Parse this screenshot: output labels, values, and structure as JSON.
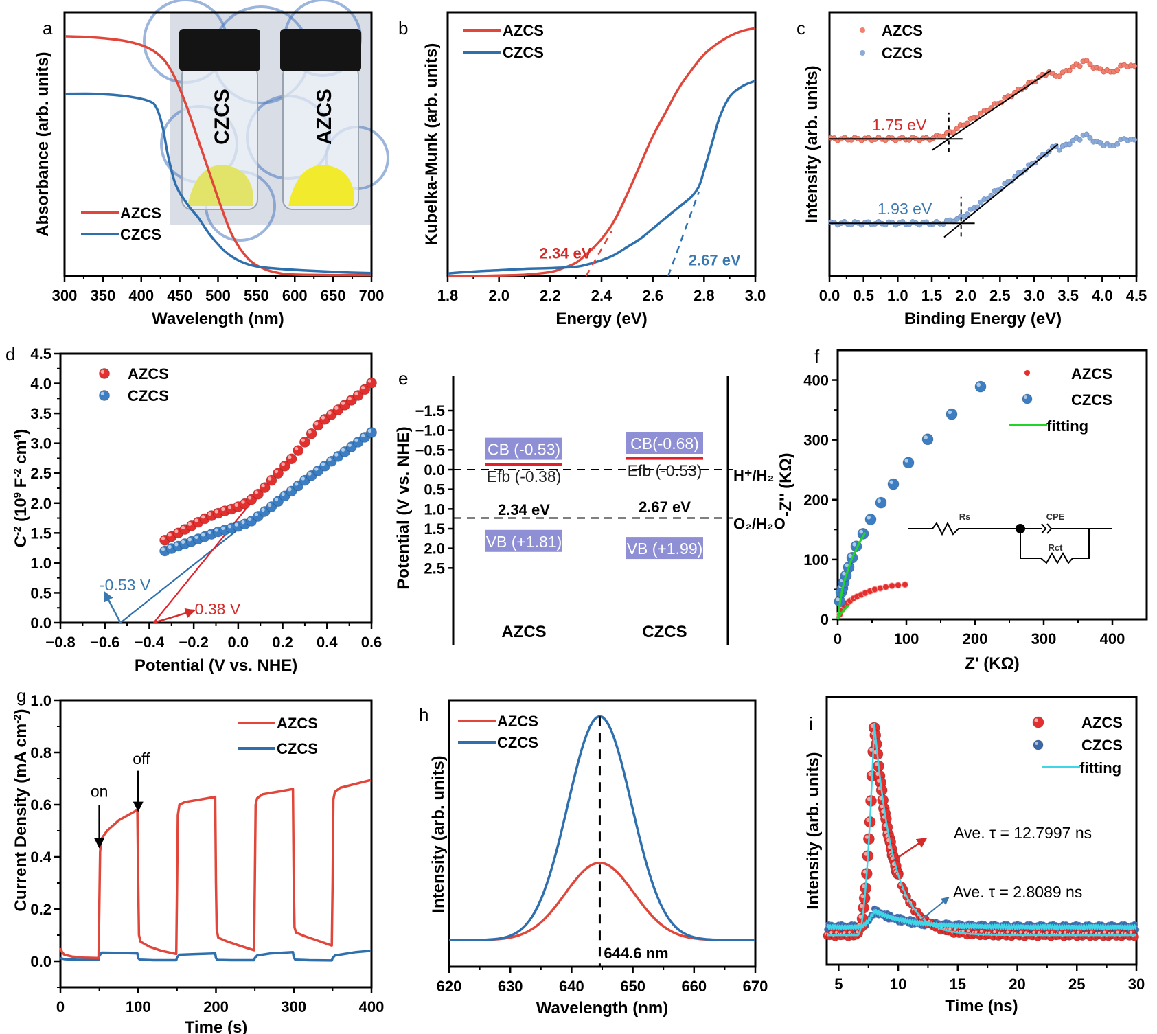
{
  "colors": {
    "azcs": "#e0473a",
    "czcs": "#2e6fad",
    "azcs_marker": "#e3302f",
    "czcs_marker": "#3b7ec4",
    "azcs_light": "#f08070",
    "czcs_light": "#8aaad8",
    "fit_green": "#22d42a",
    "fit_cyan": "#3fd7e8",
    "band_box": "#8f8fd6",
    "efb_line": "#e3202a",
    "annot_red": "#d42a2a",
    "annot_blue": "#3a78b0"
  },
  "chart_data": [
    {
      "panel": "a",
      "type": "line",
      "xlabel": "Wavelength (nm)",
      "ylabel": "Absorbance (arb. units)",
      "xlim": [
        300,
        700
      ],
      "xticks": [
        "300",
        "350",
        "400",
        "450",
        "500",
        "550",
        "600",
        "650",
        "700"
      ],
      "ylim": [
        0,
        1.1
      ],
      "legend": [
        "AZCS",
        "CZCS"
      ],
      "legend_position": "lower-left",
      "inset": {
        "description": "photo of two vials",
        "labels": [
          "CZCS",
          "AZCS"
        ]
      },
      "series": [
        {
          "name": "AZCS",
          "x": [
            300,
            340,
            380,
            410,
            430,
            445,
            460,
            475,
            490,
            505,
            520,
            540,
            560,
            580,
            600,
            650,
            700
          ],
          "y": [
            1.0,
            0.995,
            0.98,
            0.95,
            0.9,
            0.82,
            0.7,
            0.56,
            0.42,
            0.28,
            0.16,
            0.07,
            0.03,
            0.012,
            0.006,
            0.004,
            0.004
          ]
        },
        {
          "name": "CZCS",
          "x": [
            300,
            340,
            380,
            410,
            420,
            428,
            435,
            445,
            460,
            475,
            490,
            510,
            530,
            550,
            580,
            620,
            660,
            700
          ],
          "y": [
            0.76,
            0.76,
            0.75,
            0.73,
            0.7,
            0.62,
            0.5,
            0.38,
            0.3,
            0.24,
            0.17,
            0.1,
            0.06,
            0.04,
            0.03,
            0.022,
            0.016,
            0.012
          ]
        }
      ]
    },
    {
      "panel": "b",
      "type": "line",
      "xlabel": "Energy (eV)",
      "ylabel": "Kubelka-Munk (arb. units)",
      "xlim": [
        1.8,
        3.0
      ],
      "xticks": [
        "1.8",
        "2.0",
        "2.2",
        "2.4",
        "2.6",
        "2.8",
        "3.0"
      ],
      "ylim": [
        0,
        1.0
      ],
      "legend": [
        "AZCS",
        "CZCS"
      ],
      "legend_position": "top-left",
      "annotations": [
        {
          "text": "2.34 eV",
          "series": "AZCS",
          "x": 2.34
        },
        {
          "text": "2.67 eV",
          "series": "CZCS",
          "x": 2.67
        }
      ],
      "series": [
        {
          "name": "AZCS",
          "x": [
            1.8,
            1.9,
            2.0,
            2.1,
            2.2,
            2.25,
            2.3,
            2.35,
            2.4,
            2.45,
            2.5,
            2.55,
            2.6,
            2.65,
            2.7,
            2.75,
            2.8,
            2.85,
            2.9,
            2.95,
            3.0
          ],
          "y": [
            0.0,
            0.0,
            0.002,
            0.005,
            0.015,
            0.03,
            0.05,
            0.09,
            0.14,
            0.21,
            0.31,
            0.42,
            0.53,
            0.62,
            0.71,
            0.78,
            0.84,
            0.88,
            0.91,
            0.93,
            0.94
          ]
        },
        {
          "name": "CZCS",
          "x": [
            1.8,
            1.9,
            2.0,
            2.1,
            2.2,
            2.3,
            2.35,
            2.4,
            2.45,
            2.5,
            2.55,
            2.6,
            2.65,
            2.7,
            2.75,
            2.78,
            2.8,
            2.83,
            2.86,
            2.9,
            2.95,
            3.0
          ],
          "y": [
            0.01,
            0.017,
            0.022,
            0.027,
            0.03,
            0.035,
            0.045,
            0.06,
            0.08,
            0.11,
            0.14,
            0.18,
            0.22,
            0.26,
            0.3,
            0.34,
            0.4,
            0.5,
            0.6,
            0.68,
            0.72,
            0.74
          ]
        }
      ],
      "tangents": [
        {
          "series": "AZCS",
          "x": [
            2.34,
            2.44
          ],
          "y": [
            0.0,
            0.17
          ]
        },
        {
          "series": "CZCS",
          "x": [
            2.66,
            2.78
          ],
          "y": [
            0.0,
            0.32
          ]
        }
      ]
    },
    {
      "panel": "c",
      "type": "scatter",
      "xlabel": "Binding Energy (eV)",
      "ylabel": "Intensity (arb. units)",
      "xlim": [
        0.0,
        4.5
      ],
      "xticks": [
        "0.0",
        "0.5",
        "1.0",
        "1.5",
        "2.0",
        "2.5",
        "3.0",
        "3.5",
        "4.0",
        "4.5"
      ],
      "ylim": [
        0,
        1.0
      ],
      "legend": [
        "AZCS",
        "CZCS"
      ],
      "legend_position": "top-left",
      "annotations": [
        {
          "text": "1.75 eV",
          "series": "AZCS",
          "x": 1.75
        },
        {
          "text": "1.93 eV",
          "series": "CZCS",
          "x": 1.93
        }
      ],
      "series": [
        {
          "name": "AZCS",
          "baseline": 0.52,
          "edge": 1.75,
          "slope_end": 3.25,
          "plateau": 0.78
        },
        {
          "name": "CZCS",
          "baseline": 0.2,
          "edge": 1.93,
          "slope_end": 3.35,
          "plateau": 0.5
        }
      ]
    },
    {
      "panel": "d",
      "type": "scatter",
      "xlabel": "Potential (V vs. NHE)",
      "ylabel": "C⁻² (10⁹ F⁻² cm⁴)",
      "ylabel_parts": {
        "base": "C",
        "sup1": "-2",
        "mid": " (10",
        "sup2": "9",
        "mid2": " F",
        "sup3": "-2",
        "mid3": " cm",
        "sup4": "4",
        "end": ")"
      },
      "xlim": [
        -0.8,
        0.6
      ],
      "xticks": [
        "−0.8",
        "−0.6",
        "−0.4",
        "−0.2",
        "0.0",
        "0.2",
        "0.4",
        "0.6"
      ],
      "ylim": [
        0.0,
        4.5
      ],
      "yticks": [
        "0.0",
        "0.5",
        "1.0",
        "1.5",
        "2.0",
        "2.5",
        "3.0",
        "3.5",
        "4.0",
        "4.5"
      ],
      "legend": [
        "AZCS",
        "CZCS"
      ],
      "legend_position": "top-left",
      "annotations": [
        {
          "text": "-0.53 V",
          "series": "CZCS",
          "x": -0.53
        },
        {
          "text": "-0.38 V",
          "series": "AZCS",
          "x": -0.38
        }
      ],
      "series": [
        {
          "name": "AZCS",
          "x": [
            -0.33,
            -0.3,
            -0.27,
            -0.24,
            -0.21,
            -0.18,
            -0.15,
            -0.12,
            -0.09,
            -0.06,
            -0.03,
            0.0,
            0.03,
            0.06,
            0.09,
            0.12,
            0.15,
            0.18,
            0.21,
            0.24,
            0.27,
            0.3,
            0.33,
            0.36,
            0.39,
            0.42,
            0.45,
            0.48,
            0.51,
            0.54,
            0.57,
            0.6
          ],
          "y": [
            1.38,
            1.44,
            1.5,
            1.56,
            1.62,
            1.68,
            1.74,
            1.79,
            1.83,
            1.87,
            1.9,
            1.94,
            1.99,
            2.06,
            2.15,
            2.26,
            2.38,
            2.5,
            2.62,
            2.74,
            2.88,
            3.02,
            3.16,
            3.3,
            3.4,
            3.48,
            3.56,
            3.64,
            3.72,
            3.8,
            3.9,
            4.01
          ]
        },
        {
          "name": "CZCS",
          "x": [
            -0.33,
            -0.3,
            -0.27,
            -0.24,
            -0.21,
            -0.18,
            -0.15,
            -0.12,
            -0.09,
            -0.06,
            -0.03,
            0.0,
            0.03,
            0.06,
            0.09,
            0.12,
            0.15,
            0.18,
            0.21,
            0.24,
            0.27,
            0.3,
            0.33,
            0.36,
            0.39,
            0.42,
            0.45,
            0.48,
            0.51,
            0.54,
            0.57,
            0.6
          ],
          "y": [
            1.2,
            1.24,
            1.28,
            1.32,
            1.36,
            1.4,
            1.44,
            1.48,
            1.52,
            1.55,
            1.58,
            1.61,
            1.65,
            1.7,
            1.78,
            1.86,
            1.94,
            2.03,
            2.12,
            2.2,
            2.29,
            2.38,
            2.46,
            2.54,
            2.62,
            2.7,
            2.78,
            2.86,
            2.94,
            3.02,
            3.1,
            3.18
          ]
        }
      ],
      "tangents": [
        {
          "series": "CZCS",
          "x": [
            -0.53,
            0.02
          ],
          "y": [
            0.0,
            1.62
          ]
        },
        {
          "series": "AZCS",
          "x": [
            -0.38,
            0.06
          ],
          "y": [
            0.0,
            2.02
          ]
        }
      ]
    },
    {
      "panel": "e",
      "type": "diagram",
      "ylabel": "Potential (V vs. NHE)",
      "ylim": [
        -1.5,
        3.0
      ],
      "yticks": [
        "−1.5",
        "−1.0",
        "−0.5",
        "0.0",
        "0.5",
        "1.0",
        "1.5",
        "2.0",
        "2.5"
      ],
      "ytick_values": [
        -1.5,
        -1.0,
        -0.5,
        0.0,
        0.5,
        1.0,
        1.5,
        2.0,
        2.5
      ],
      "reference_levels": [
        {
          "label": "H⁺/H₂",
          "value": 0.0
        },
        {
          "label": "O₂/H₂O",
          "value": 1.23
        }
      ],
      "materials": [
        {
          "name": "AZCS",
          "cb_label": "CB (-0.53)",
          "cb": -0.53,
          "efb_label": "Efb (-0.38)",
          "efb": -0.38,
          "vb_label": "VB (+1.81)",
          "vb": 1.81,
          "gap_label": "2.34 eV"
        },
        {
          "name": "CZCS",
          "cb_label": "CB(-0.68)",
          "cb": -0.68,
          "efb_label": "Efb (-0.53)",
          "efb": -0.53,
          "vb_label": "VB (+1.99)",
          "vb": 1.99,
          "gap_label": "2.67 eV"
        }
      ]
    },
    {
      "panel": "f",
      "type": "scatter",
      "xlabel": "Z' (KΩ)",
      "ylabel": "-Z'' (KΩ)",
      "xlim": [
        0,
        450
      ],
      "xticks": [
        "0",
        "100",
        "200",
        "300",
        "400"
      ],
      "ylim": [
        0,
        450
      ],
      "yticks": [
        "0",
        "100",
        "200",
        "300",
        "400"
      ],
      "legend": [
        "AZCS",
        "CZCS",
        "fitting"
      ],
      "legend_position": "top-right",
      "inset_circuit": {
        "labels": [
          "Rs",
          "CPE",
          "Rct"
        ]
      },
      "series": [
        {
          "name": "AZCS",
          "x": [
            3,
            6,
            10,
            14,
            18,
            23,
            28,
            34,
            40,
            47,
            54,
            62,
            70,
            79,
            88,
            98
          ],
          "y": [
            8,
            15,
            22,
            27,
            31,
            35,
            38,
            41,
            44,
            47,
            50,
            52,
            54,
            56,
            57,
            58
          ]
        },
        {
          "name": "CZCS",
          "x": [
            3,
            5,
            7,
            9,
            12,
            16,
            21,
            27,
            37,
            48,
            63,
            81,
            103,
            131,
            166,
            208
          ],
          "y": [
            30,
            45,
            52,
            62,
            73,
            87,
            103,
            122,
            143,
            167,
            195,
            226,
            262,
            301,
            343,
            389
          ]
        },
        {
          "name": "fitting",
          "x": [
            0,
            5,
            10,
            15,
            20,
            25,
            30,
            35,
            40
          ],
          "y": [
            0,
            40,
            65,
            83,
            100,
            112,
            124,
            135,
            145
          ]
        },
        {
          "name": "fitting",
          "x": [
            0,
            4,
            8,
            12,
            16
          ],
          "y": [
            0,
            8,
            14,
            19,
            23
          ]
        }
      ]
    },
    {
      "panel": "g",
      "type": "line",
      "xlabel": "Time (s)",
      "ylabel": "Current Density (mA cm⁻²)",
      "ylabel_parts": {
        "base": "Current Density (mA cm",
        "sup": "-2",
        "end": ")"
      },
      "xlim": [
        0,
        400
      ],
      "xticks": [
        "0",
        "100",
        "200",
        "300",
        "400"
      ],
      "ylim": [
        -0.1,
        1.0
      ],
      "yticks": [
        "0.0",
        "0.2",
        "0.4",
        "0.6",
        "0.8",
        "1.0"
      ],
      "legend": [
        "AZCS",
        "CZCS"
      ],
      "legend_position": "top-right",
      "annotations": [
        {
          "text": "on",
          "x": 50
        },
        {
          "text": "off",
          "x": 100
        }
      ],
      "series": [
        {
          "name": "AZCS",
          "x": [
            0,
            2,
            5,
            15,
            30,
            49,
            50,
            51,
            53,
            60,
            75,
            99,
            100,
            101,
            103,
            115,
            130,
            149,
            150,
            151,
            153,
            160,
            180,
            199,
            200,
            201,
            203,
            215,
            230,
            249,
            250,
            251,
            253,
            260,
            280,
            299,
            300,
            301,
            303,
            315,
            330,
            349,
            350,
            351,
            353,
            360,
            380,
            400
          ],
          "y": [
            0.05,
            0.035,
            0.025,
            0.018,
            0.014,
            0.012,
            0.2,
            0.42,
            0.47,
            0.5,
            0.54,
            0.58,
            0.3,
            0.1,
            0.075,
            0.055,
            0.04,
            0.028,
            0.3,
            0.56,
            0.6,
            0.61,
            0.62,
            0.63,
            0.3,
            0.12,
            0.09,
            0.075,
            0.06,
            0.042,
            0.3,
            0.6,
            0.625,
            0.64,
            0.65,
            0.66,
            0.3,
            0.13,
            0.11,
            0.095,
            0.08,
            0.06,
            0.3,
            0.62,
            0.65,
            0.665,
            0.68,
            0.695
          ]
        },
        {
          "name": "CZCS",
          "x": [
            0,
            5,
            20,
            49,
            50,
            53,
            70,
            99,
            100,
            102,
            120,
            149,
            150,
            153,
            170,
            199,
            200,
            202,
            220,
            249,
            250,
            253,
            270,
            299,
            300,
            302,
            320,
            349,
            350,
            353,
            380,
            400
          ],
          "y": [
            0.012,
            0.008,
            0.006,
            0.005,
            0.02,
            0.033,
            0.032,
            0.03,
            0.012,
            0.006,
            0.004,
            0.004,
            0.015,
            0.025,
            0.027,
            0.03,
            0.012,
            0.005,
            0.004,
            0.004,
            0.012,
            0.022,
            0.03,
            0.035,
            0.015,
            0.006,
            0.004,
            0.003,
            0.012,
            0.022,
            0.035,
            0.04
          ]
        }
      ]
    },
    {
      "panel": "h",
      "type": "line",
      "xlabel": "Wavelength (nm)",
      "ylabel": "Intensity (arb. units)",
      "xlim": [
        620,
        670
      ],
      "xticks": [
        "620",
        "630",
        "640",
        "650",
        "660",
        "670"
      ],
      "ylim": [
        0,
        1.0
      ],
      "legend": [
        "AZCS",
        "CZCS"
      ],
      "legend_position": "top-left",
      "annotations": [
        {
          "text": "644.6 nm",
          "x": 644.6
        }
      ],
      "series": [
        {
          "name": "AZCS",
          "peak": 644.6,
          "height": 0.29,
          "sigma": 5.6,
          "baseline": 0.1
        },
        {
          "name": "CZCS",
          "peak": 644.6,
          "height": 0.84,
          "sigma": 5.2,
          "baseline": 0.1
        }
      ]
    },
    {
      "panel": "i",
      "type": "scatter",
      "xlabel": "Time (ns)",
      "ylabel": "Intensity (arb. units)",
      "xlim": [
        4,
        30
      ],
      "xticks": [
        "5",
        "10",
        "15",
        "20",
        "25",
        "30"
      ],
      "xtick_values": [
        5,
        10,
        15,
        20,
        25,
        30
      ],
      "ylim": [
        0,
        1.0
      ],
      "legend": [
        "AZCS",
        "CZCS",
        "fitting"
      ],
      "legend_position": "top-right",
      "annotations": [
        {
          "text": "Ave. τ = 12.7997 ns",
          "series": "AZCS"
        },
        {
          "text": "Ave. τ = 2.8089 ns",
          "series": "CZCS"
        }
      ],
      "series": [
        {
          "name": "AZCS",
          "rise_start": 6.6,
          "peak_t": 8.0,
          "peak": 0.9,
          "baseline": 0.11,
          "decay_tau": 1.6
        },
        {
          "name": "CZCS",
          "rise_start": 6.6,
          "peak_t": 8.0,
          "peak": 0.2,
          "baseline": 0.14,
          "decay_tau": 2.8
        }
      ]
    }
  ]
}
